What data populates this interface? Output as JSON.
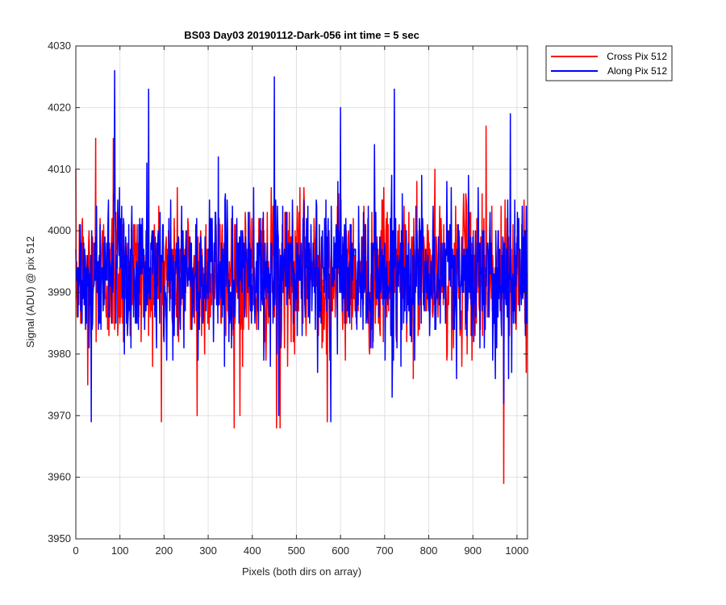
{
  "chart_data": {
    "type": "line",
    "title": "BS03 Day03 20190112-Dark-056 int time = 5 sec",
    "xlabel": "Pixels (both dirs on array)",
    "ylabel": "Signal (ADU) @ pix 512",
    "xlim": [
      0,
      1024
    ],
    "ylim": [
      3950,
      4030
    ],
    "xticks": [
      0,
      100,
      200,
      300,
      400,
      500,
      600,
      700,
      800,
      900,
      1000
    ],
    "yticks": [
      3950,
      3960,
      3970,
      3980,
      3990,
      4000,
      4010,
      4020,
      4030
    ],
    "grid": true,
    "legend_position": "outside-top-right",
    "series": [
      {
        "name": "Cross Pix 512",
        "color": "#ff0000",
        "n_points": 1024,
        "baseline": 3993,
        "spread": 6,
        "notable_points": [
          [
            27,
            3975
          ],
          [
            45,
            4015
          ],
          [
            85,
            4015
          ],
          [
            275,
            3970
          ],
          [
            372,
            3970
          ],
          [
            455,
            3968
          ],
          [
            463,
            3968
          ],
          [
            570,
            3969
          ],
          [
            970,
            3959
          ],
          [
            930,
            4017
          ]
        ]
      },
      {
        "name": "Along Pix 512",
        "color": "#0000ff",
        "n_points": 1024,
        "baseline": 3993,
        "spread": 6,
        "notable_points": [
          [
            35,
            3969
          ],
          [
            88,
            4026
          ],
          [
            165,
            4023
          ],
          [
            450,
            4025
          ],
          [
            460,
            3970
          ],
          [
            578,
            3969
          ],
          [
            722,
            4023
          ],
          [
            600,
            4020
          ],
          [
            970,
            3972
          ],
          [
            985,
            4019
          ]
        ]
      }
    ]
  }
}
